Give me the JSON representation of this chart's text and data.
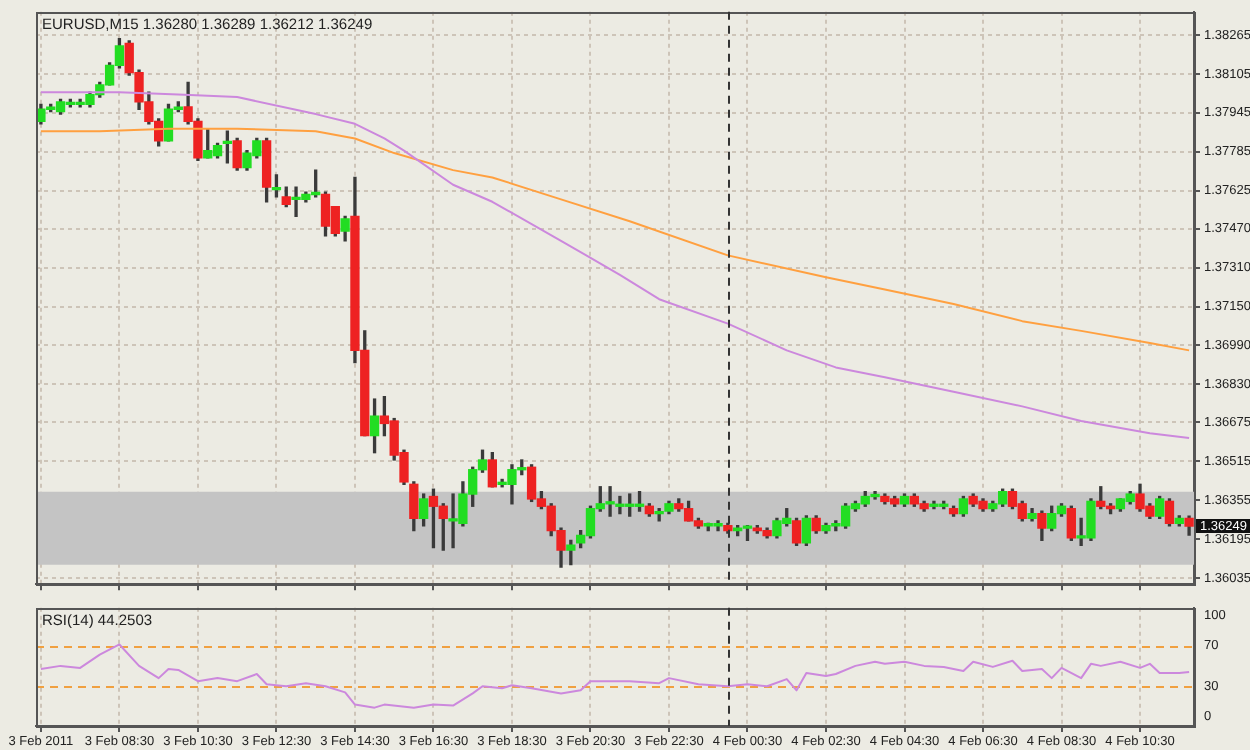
{
  "chart_data": [
    {
      "type": "candlestick",
      "title": "EURUSD,M15 1.36280 1.36289 1.36212 1.36249",
      "ohlc": [
        [
          1.3791,
          1.3798,
          1.379,
          1.3796
        ],
        [
          1.3796,
          1.3798,
          1.3795,
          1.3796
        ],
        [
          1.3795,
          1.38,
          1.3794,
          1.3799
        ],
        [
          1.3798,
          1.38,
          1.3797,
          1.3798
        ],
        [
          1.3798,
          1.38,
          1.3797,
          1.3798
        ],
        [
          1.3798,
          1.3803,
          1.3797,
          1.3802
        ],
        [
          1.3802,
          1.3807,
          1.3801,
          1.3806
        ],
        [
          1.3806,
          1.3815,
          1.3806,
          1.3814
        ],
        [
          1.3814,
          1.3825,
          1.3813,
          1.3822
        ],
        [
          1.3823,
          1.3824,
          1.381,
          1.3811
        ],
        [
          1.3811,
          1.3812,
          1.3796,
          1.3799
        ],
        [
          1.3799,
          1.3803,
          1.379,
          1.3791
        ],
        [
          1.3791,
          1.3792,
          1.3781,
          1.3783
        ],
        [
          1.3783,
          1.3798,
          1.3783,
          1.3796
        ],
        [
          1.3796,
          1.3799,
          1.3795,
          1.3796
        ],
        [
          1.3797,
          1.3807,
          1.379,
          1.3791
        ],
        [
          1.3791,
          1.3792,
          1.3775,
          1.3776
        ],
        [
          1.3776,
          1.3788,
          1.3776,
          1.3779
        ],
        [
          1.3777,
          1.3782,
          1.3776,
          1.3781
        ],
        [
          1.3782,
          1.3787,
          1.3774,
          1.3782
        ],
        [
          1.3783,
          1.3784,
          1.3771,
          1.3772
        ],
        [
          1.3772,
          1.3779,
          1.3771,
          1.3778
        ],
        [
          1.3777,
          1.3784,
          1.3776,
          1.3783
        ],
        [
          1.3783,
          1.3784,
          1.3758,
          1.3764
        ],
        [
          1.3763,
          1.3769,
          1.376,
          1.3763
        ],
        [
          1.376,
          1.3764,
          1.3756,
          1.3757
        ],
        [
          1.3759,
          1.3764,
          1.3752,
          1.3759
        ],
        [
          1.3759,
          1.3762,
          1.3758,
          1.3761
        ],
        [
          1.3761,
          1.3771,
          1.376,
          1.3761
        ],
        [
          1.3761,
          1.3762,
          1.3744,
          1.3748
        ],
        [
          1.3756,
          1.3756,
          1.3744,
          1.3745
        ],
        [
          1.3746,
          1.3752,
          1.3742,
          1.3751
        ],
        [
          1.3752,
          1.3768,
          1.3692,
          1.3697
        ],
        [
          1.3697,
          1.3705,
          1.3662,
          1.3662
        ],
        [
          1.3662,
          1.3677,
          1.3655,
          1.367
        ],
        [
          1.367,
          1.3678,
          1.3662,
          1.3667
        ],
        [
          1.3668,
          1.3669,
          1.3652,
          1.3654
        ],
        [
          1.3655,
          1.3656,
          1.3642,
          1.3643
        ],
        [
          1.3642,
          1.3643,
          1.3623,
          1.3628
        ],
        [
          1.3628,
          1.3638,
          1.3625,
          1.3636
        ],
        [
          1.3637,
          1.364,
          1.3616,
          1.3633
        ],
        [
          1.3633,
          1.3634,
          1.3615,
          1.3628
        ],
        [
          1.3627,
          1.3638,
          1.3616,
          1.3627
        ],
        [
          1.3626,
          1.3643,
          1.3625,
          1.3638
        ],
        [
          1.3638,
          1.3649,
          1.3633,
          1.3648
        ],
        [
          1.3648,
          1.3656,
          1.3647,
          1.3652
        ],
        [
          1.3652,
          1.3655,
          1.3641,
          1.3641
        ],
        [
          1.3642,
          1.3644,
          1.3641,
          1.3642
        ],
        [
          1.3642,
          1.365,
          1.3634,
          1.3648
        ],
        [
          1.3648,
          1.3652,
          1.3646,
          1.3648
        ],
        [
          1.3649,
          1.365,
          1.3635,
          1.3636
        ],
        [
          1.3636,
          1.3639,
          1.3632,
          1.3633
        ],
        [
          1.3633,
          1.3634,
          1.3621,
          1.3623
        ],
        [
          1.3623,
          1.3624,
          1.3608,
          1.3615
        ],
        [
          1.3615,
          1.3619,
          1.3609,
          1.3617
        ],
        [
          1.3618,
          1.3623,
          1.3616,
          1.3621
        ],
        [
          1.3621,
          1.3633,
          1.362,
          1.3632
        ],
        [
          1.3632,
          1.3641,
          1.3631,
          1.3634
        ],
        [
          1.3634,
          1.3641,
          1.3629,
          1.3634
        ],
        [
          1.3633,
          1.3637,
          1.363,
          1.3633
        ],
        [
          1.3633,
          1.3638,
          1.3629,
          1.3633
        ],
        [
          1.3633,
          1.3639,
          1.3631,
          1.3633
        ],
        [
          1.3633,
          1.3634,
          1.3629,
          1.363
        ],
        [
          1.363,
          1.3632,
          1.3627,
          1.363
        ],
        [
          1.3631,
          1.3635,
          1.363,
          1.3634
        ],
        [
          1.3634,
          1.3636,
          1.3631,
          1.3632
        ],
        [
          1.3632,
          1.3635,
          1.3627,
          1.3627
        ],
        [
          1.3627,
          1.3628,
          1.3624,
          1.3625
        ],
        [
          1.3625,
          1.3626,
          1.3623,
          1.3625
        ],
        [
          1.3625,
          1.3627,
          1.3623,
          1.3625
        ],
        [
          1.3625,
          1.3626,
          1.3622,
          1.3623
        ],
        [
          1.3623,
          1.3625,
          1.3621,
          1.3624
        ],
        [
          1.3624,
          1.3625,
          1.3619,
          1.3624
        ],
        [
          1.3624,
          1.3625,
          1.3622,
          1.3623
        ],
        [
          1.3623,
          1.3624,
          1.362,
          1.3621
        ],
        [
          1.3621,
          1.3628,
          1.362,
          1.3627
        ],
        [
          1.3626,
          1.3632,
          1.3625,
          1.3628
        ],
        [
          1.3627,
          1.3628,
          1.3617,
          1.3618
        ],
        [
          1.3618,
          1.3629,
          1.3617,
          1.3628
        ],
        [
          1.3628,
          1.3629,
          1.3622,
          1.3623
        ],
        [
          1.3623,
          1.3626,
          1.3622,
          1.3625
        ],
        [
          1.3625,
          1.3627,
          1.3623,
          1.3625
        ],
        [
          1.3625,
          1.3634,
          1.3624,
          1.3633
        ],
        [
          1.3632,
          1.3635,
          1.3631,
          1.3634
        ],
        [
          1.3634,
          1.3639,
          1.3633,
          1.3637
        ],
        [
          1.3637,
          1.3639,
          1.3636,
          1.3637
        ],
        [
          1.3637,
          1.3638,
          1.3634,
          1.3635
        ],
        [
          1.3636,
          1.3637,
          1.3633,
          1.3634
        ],
        [
          1.3634,
          1.3638,
          1.3633,
          1.3637
        ],
        [
          1.3637,
          1.3638,
          1.3633,
          1.3634
        ],
        [
          1.3634,
          1.3635,
          1.3631,
          1.3632
        ],
        [
          1.3633,
          1.3635,
          1.3632,
          1.3633
        ],
        [
          1.3633,
          1.3635,
          1.3632,
          1.3633
        ],
        [
          1.3632,
          1.3633,
          1.3629,
          1.363
        ],
        [
          1.363,
          1.3637,
          1.3629,
          1.3636
        ],
        [
          1.3637,
          1.3638,
          1.3633,
          1.3634
        ],
        [
          1.3635,
          1.3636,
          1.3631,
          1.3632
        ],
        [
          1.3632,
          1.3635,
          1.3631,
          1.3634
        ],
        [
          1.3634,
          1.364,
          1.3633,
          1.3639
        ],
        [
          1.3639,
          1.364,
          1.3632,
          1.3633
        ],
        [
          1.3634,
          1.3635,
          1.3627,
          1.3628
        ],
        [
          1.3628,
          1.3632,
          1.3627,
          1.363
        ],
        [
          1.363,
          1.3631,
          1.3619,
          1.3624
        ],
        [
          1.3624,
          1.3633,
          1.3623,
          1.363
        ],
        [
          1.363,
          1.3634,
          1.3629,
          1.3633
        ],
        [
          1.3632,
          1.3633,
          1.3619,
          1.362
        ],
        [
          1.362,
          1.3628,
          1.3617,
          1.362
        ],
        [
          1.362,
          1.3636,
          1.3619,
          1.3635
        ],
        [
          1.3635,
          1.3641,
          1.3632,
          1.3633
        ],
        [
          1.3633,
          1.3634,
          1.363,
          1.3632
        ],
        [
          1.3632,
          1.3636,
          1.3631,
          1.3636
        ],
        [
          1.3635,
          1.3639,
          1.3634,
          1.3638
        ],
        [
          1.3638,
          1.3642,
          1.3631,
          1.3632
        ],
        [
          1.3633,
          1.3634,
          1.3628,
          1.3629
        ],
        [
          1.3629,
          1.3637,
          1.3628,
          1.3636
        ],
        [
          1.3635,
          1.3636,
          1.3625,
          1.3626
        ],
        [
          1.3626,
          1.3629,
          1.3625,
          1.3628
        ],
        [
          1.3628,
          1.36289,
          1.36212,
          1.36249
        ]
      ],
      "series": [
        {
          "type": "line",
          "color": "#cc88dd",
          "values": [
            1.3803,
            null,
            null,
            null,
            null,
            null,
            null,
            null,
            1.3803,
            null,
            null,
            null,
            null,
            null,
            1.3802,
            null,
            null,
            null,
            null,
            null,
            1.3801,
            null,
            null,
            null,
            null,
            null,
            null,
            null,
            1.3794,
            null,
            null,
            null,
            1.379,
            null,
            null,
            1.3784,
            null,
            1.3779,
            null,
            null,
            null,
            null,
            1.3765,
            null,
            null,
            null,
            1.3758,
            null,
            null,
            null,
            null,
            null,
            null,
            1.3742,
            null,
            null,
            null,
            null,
            null,
            1.3728,
            null,
            null,
            null,
            1.3718,
            null,
            null,
            null,
            null,
            null,
            null,
            1.3708,
            null,
            null,
            null,
            null,
            null,
            1.3697,
            null,
            null,
            null,
            null,
            1.369,
            null,
            null,
            null,
            null,
            1.3686,
            null,
            null,
            null,
            null,
            null,
            null,
            1.368,
            null,
            null,
            null,
            null,
            null,
            null,
            1.3674,
            null,
            null,
            null,
            null,
            null,
            1.3668,
            null,
            null,
            null,
            null,
            null,
            null,
            1.3663,
            null,
            null,
            null,
            1.3661
          ]
        },
        {
          "type": "line",
          "color": "#ffa040",
          "values": [
            1.3787,
            null,
            null,
            null,
            null,
            null,
            1.3787,
            null,
            null,
            null,
            null,
            null,
            null,
            1.3788,
            null,
            null,
            null,
            null,
            null,
            null,
            1.3788,
            null,
            null,
            null,
            null,
            null,
            null,
            null,
            1.3787,
            null,
            null,
            null,
            1.3784,
            null,
            null,
            null,
            1.3778,
            null,
            null,
            null,
            null,
            null,
            1.3771,
            null,
            null,
            null,
            1.3768,
            null,
            null,
            null,
            null,
            null,
            null,
            1.3759,
            null,
            null,
            null,
            null,
            null,
            null,
            1.375,
            null,
            null,
            null,
            null,
            null,
            null,
            null,
            null,
            null,
            1.3736,
            null,
            null,
            null,
            null,
            null,
            null,
            null,
            null,
            null,
            1.3727,
            null,
            null,
            null,
            null,
            null,
            1.3722,
            null,
            null,
            null,
            null,
            null,
            null,
            1.3716,
            null,
            null,
            null,
            null,
            null,
            null,
            1.3709,
            null,
            null,
            null,
            null,
            null,
            1.3705,
            null,
            null,
            null,
            null,
            null,
            null,
            1.37,
            null,
            null,
            null,
            1.3697
          ]
        }
      ],
      "ylim": [
        1.3601,
        1.3836
      ],
      "yticks": [
        1.38265,
        1.38105,
        1.37945,
        1.37785,
        1.37625,
        {
          "value": 1.3747,
          "label": "1.37470"
        },
        {
          "value": 1.3731,
          "label": "1.37310"
        },
        {
          "value": 1.3715,
          "label": "1.37150"
        },
        {
          "value": 1.3699,
          "label": "1.36990"
        },
        {
          "value": 1.3683,
          "label": "1.36830"
        },
        1.36675,
        1.36515,
        1.36355,
        1.36195,
        1.36035
      ],
      "grid": true,
      "tick_labels": "y",
      "bands": [
        {
          "axis": "y",
          "from": 1.3609,
          "to": 1.3639,
          "color": "#c4c4c4"
        }
      ],
      "annotations": [
        "1.36249"
      ]
    },
    {
      "type": "line",
      "title": "RSI(14) 44.2503",
      "categories": [
        "3 Feb 2011",
        null,
        null,
        null,
        null,
        null,
        null,
        null,
        "3 Feb 08:30",
        null,
        null,
        null,
        null,
        null,
        null,
        null,
        "3 Feb 10:30",
        null,
        null,
        null,
        null,
        null,
        null,
        null,
        "3 Feb 12:30",
        null,
        null,
        null,
        null,
        null,
        null,
        null,
        "3 Feb 14:30",
        null,
        null,
        null,
        null,
        null,
        null,
        null,
        "3 Feb 16:30",
        null,
        null,
        null,
        null,
        null,
        null,
        null,
        "3 Feb 18:30",
        null,
        null,
        null,
        null,
        null,
        null,
        null,
        "3 Feb 20:30",
        null,
        null,
        null,
        null,
        null,
        null,
        null,
        "3 Feb 22:30",
        null,
        null,
        null,
        null,
        null,
        null,
        null,
        "4 Feb 00:30",
        null,
        null,
        null,
        null,
        null,
        null,
        null,
        "4 Feb 02:30",
        null,
        null,
        null,
        null,
        null,
        null,
        null,
        "4 Feb 04:30",
        null,
        null,
        null,
        null,
        null,
        null,
        null,
        "4 Feb 06:30",
        null,
        null,
        null,
        null,
        null,
        null,
        null,
        "4 Feb 08:30",
        null,
        null,
        null,
        null,
        null,
        null,
        null,
        "4 Feb 10:30",
        null,
        null,
        null,
        null,
        null
      ],
      "series": [
        {
          "color": "#cc88dd",
          "values": [
            47,
            null,
            50,
            null,
            48,
            null,
            61,
            null,
            71,
            null,
            50,
            null,
            38,
            47,
            46,
            null,
            35,
            null,
            38,
            null,
            35,
            null,
            42,
            32,
            null,
            30,
            null,
            33,
            null,
            30,
            null,
            24,
            12,
            null,
            9,
            12,
            null,
            null,
            9,
            null,
            12,
            null,
            11,
            null,
            23,
            30,
            null,
            28,
            31,
            null,
            28,
            null,
            null,
            23,
            null,
            26,
            35,
            null,
            null,
            null,
            35,
            null,
            null,
            33,
            38,
            null,
            null,
            32,
            null,
            null,
            30,
            null,
            32,
            null,
            30,
            null,
            37,
            26,
            43,
            null,
            40,
            42,
            null,
            50,
            null,
            54,
            52,
            null,
            54,
            null,
            50,
            null,
            49,
            null,
            45,
            54,
            null,
            49,
            null,
            55,
            45,
            null,
            47,
            38,
            48,
            null,
            38,
            52,
            50,
            null,
            54,
            null,
            48,
            52,
            43,
            null,
            43,
            44
          ]
        }
      ],
      "ylim": [
        -9,
        107
      ],
      "yticks": [
        0,
        30,
        70,
        100
      ],
      "grid": "x",
      "ref_lines": [
        {
          "axis": "y",
          "value": 70,
          "color": "#f0a040",
          "line_style": "dashed"
        },
        {
          "axis": "y",
          "value": 30,
          "color": "#f0a040",
          "line_style": "dashed"
        }
      ]
    }
  ]
}
